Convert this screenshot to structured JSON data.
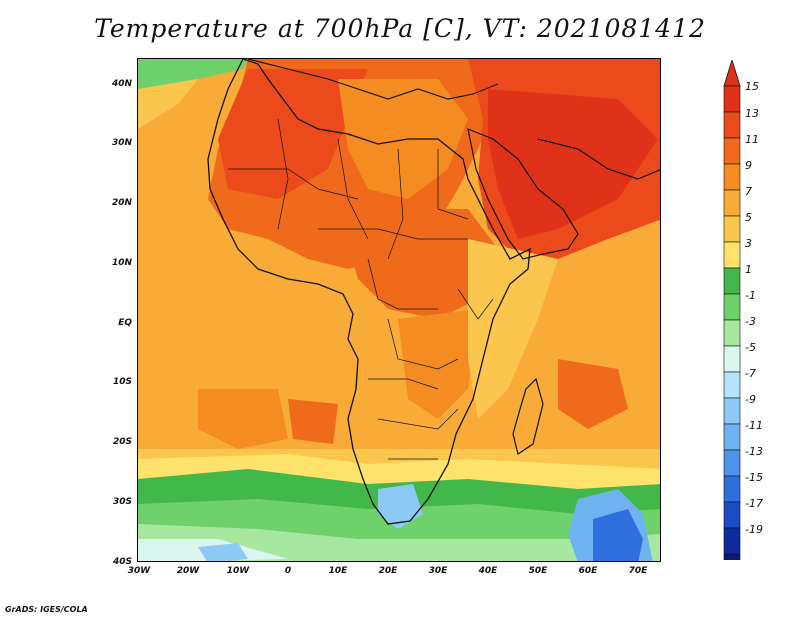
{
  "title": "Temperature at 700hPa [C], VT: 2021081412",
  "credit": "GrADS: IGES/COLA",
  "map": {
    "lon_labels": [
      "30W",
      "20W",
      "10W",
      "0",
      "10E",
      "20E",
      "30E",
      "40E",
      "50E",
      "60E",
      "70E"
    ],
    "lat_labels": [
      "40N",
      "30N",
      "20N",
      "10N",
      "EQ",
      "10S",
      "20S",
      "30S",
      "40S"
    ],
    "lon_range": [
      -30,
      75
    ],
    "lat_range": [
      -40,
      45
    ]
  },
  "colorbar": {
    "labels": [
      "15",
      "13",
      "11",
      "9",
      "7",
      "5",
      "3",
      "1",
      "-1",
      "-3",
      "-5",
      "-7",
      "-9",
      "-11",
      "-13",
      "-15",
      "-17",
      "-19"
    ],
    "colors": [
      "#e03218",
      "#ec4a1a",
      "#f06a1c",
      "#f48c22",
      "#f8ab36",
      "#fbc64e",
      "#fde36c",
      "#43b84a",
      "#6fd16c",
      "#a7e7a0",
      "#daf6ee",
      "#b6e3fb",
      "#8ccaf5",
      "#6fb2f2",
      "#5094ea",
      "#2f6edd",
      "#1a4bc8",
      "#0e2a9e",
      "#0a1878"
    ],
    "top_color": "#e03218",
    "bottom_color": "#e8e8fa"
  }
}
